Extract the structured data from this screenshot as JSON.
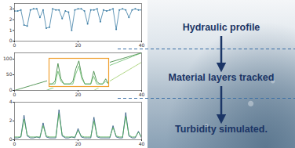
{
  "chart_data": [
    {
      "type": "line",
      "marker": "circle",
      "x": [
        0,
        1,
        2,
        3,
        4,
        5,
        6,
        7,
        8,
        9,
        10,
        11,
        12,
        13,
        14,
        15,
        16,
        17,
        18,
        19,
        20,
        21,
        22,
        23,
        24,
        25,
        26,
        27,
        28,
        29,
        30,
        31,
        32,
        33,
        34,
        35,
        36,
        37,
        38,
        39,
        40
      ],
      "series": [
        {
          "color": "#3f7fa6",
          "values": [
            2.8,
            2.8,
            2.9,
            1.5,
            1.4,
            2.9,
            3.0,
            3.0,
            2.2,
            2.9,
            1.2,
            1.3,
            3.0,
            2.9,
            2.9,
            2.1,
            2.8,
            2.7,
            1.0,
            2.9,
            3.0,
            3.0,
            2.8,
            1.6,
            2.9,
            2.9,
            3.0,
            1.8,
            2.9,
            2.8,
            2.9,
            3.0,
            1.1,
            2.9,
            3.0,
            2.9,
            2.2,
            2.9,
            3.0,
            2.9,
            2.9
          ]
        }
      ],
      "xlim": [
        0,
        40
      ],
      "xticks": [
        0,
        20,
        40
      ],
      "ylim": [
        0,
        3.5
      ],
      "yticks": [
        0,
        1,
        2,
        3
      ],
      "grid": false
    },
    {
      "type": "line",
      "x": [
        0,
        1,
        2,
        3,
        4,
        5,
        6,
        7,
        8,
        9,
        10,
        11,
        12,
        13,
        14,
        15,
        16,
        17,
        18,
        19,
        20,
        21,
        22,
        23,
        24,
        25,
        26,
        27,
        28,
        29,
        30,
        31,
        32,
        33,
        34,
        35,
        36,
        37,
        38,
        39,
        40
      ],
      "series": [
        {
          "color": "#2e7d32",
          "values": [
            0,
            3,
            6,
            9,
            12,
            15,
            18,
            21,
            24,
            27,
            30,
            33,
            36,
            39,
            42,
            45,
            48,
            51,
            54,
            57,
            60,
            63,
            66,
            69,
            72,
            75,
            78,
            81,
            84,
            87,
            90,
            93,
            96,
            99,
            102,
            105,
            108,
            111,
            114,
            117,
            120
          ]
        },
        {
          "color": "#66bb6a",
          "values": [
            null,
            null,
            null,
            null,
            null,
            null,
            null,
            null,
            null,
            null,
            0,
            4,
            8,
            12,
            16,
            20,
            24,
            28,
            32,
            36,
            40,
            44,
            48,
            52,
            56,
            60,
            64,
            68,
            72,
            76,
            80,
            84,
            88,
            92,
            96,
            100,
            104,
            108,
            112,
            116,
            120
          ]
        },
        {
          "color": "#9ccc65",
          "values": [
            null,
            null,
            null,
            null,
            null,
            null,
            null,
            null,
            null,
            null,
            null,
            null,
            null,
            null,
            null,
            null,
            null,
            null,
            null,
            null,
            null,
            null,
            null,
            null,
            null,
            0,
            6,
            12,
            18,
            24,
            30,
            36,
            42,
            48,
            54,
            60,
            66,
            72,
            78,
            84,
            90
          ]
        }
      ],
      "xlim": [
        0,
        40
      ],
      "xticks": [
        0,
        20,
        40
      ],
      "ylim": [
        0,
        120
      ],
      "yticks": [
        0,
        50,
        100
      ],
      "grid": false
    },
    {
      "type": "line",
      "tick_labels": false,
      "x": [
        0,
        1,
        2,
        3,
        4,
        5,
        6,
        7,
        8,
        9,
        10,
        11,
        12,
        13,
        14,
        15,
        16,
        17,
        18,
        19,
        20
      ],
      "series": [
        {
          "color": "#2e7d32",
          "values": [
            1,
            1,
            2,
            9,
            3,
            1,
            1,
            1,
            2,
            7,
            10,
            4,
            1,
            1,
            1,
            6,
            2,
            1,
            1,
            3,
            1
          ]
        },
        {
          "color": "#66bb6a",
          "values": [
            1,
            1,
            1,
            6,
            2,
            1,
            1,
            1,
            1,
            5,
            8,
            3,
            1,
            1,
            1,
            4,
            1,
            1,
            1,
            2,
            1
          ]
        }
      ],
      "xlim": [
        0,
        20
      ],
      "ylim": [
        0,
        11
      ],
      "grid": false
    },
    {
      "type": "line",
      "x": [
        0,
        1,
        2,
        3,
        4,
        5,
        6,
        7,
        8,
        9,
        10,
        11,
        12,
        13,
        14,
        15,
        16,
        17,
        18,
        19,
        20,
        21,
        22,
        23,
        24,
        25,
        26,
        27,
        28,
        29,
        30,
        31,
        32,
        33,
        34,
        35,
        36,
        37,
        38,
        39,
        40
      ],
      "series": [
        {
          "color": "#1f4e79",
          "values": [
            0.2,
            0.2,
            0.3,
            2.6,
            0.4,
            0.2,
            0.2,
            0.3,
            0.2,
            1.8,
            0.3,
            0.2,
            0.2,
            0.2,
            3.2,
            0.4,
            0.2,
            0.2,
            0.3,
            0.2,
            1.2,
            0.3,
            0.2,
            0.2,
            0.2,
            2.4,
            0.3,
            0.2,
            0.2,
            0.2,
            0.2,
            1.5,
            0.3,
            0.2,
            0.2,
            2.9,
            0.4,
            0.2,
            0.2,
            0.9,
            0.2
          ]
        },
        {
          "color": "#4caf50",
          "values": [
            0.3,
            0.3,
            0.3,
            2.2,
            0.5,
            0.3,
            0.3,
            0.3,
            0.3,
            1.5,
            0.4,
            0.3,
            0.3,
            0.3,
            2.8,
            0.5,
            0.3,
            0.3,
            0.3,
            0.3,
            1.0,
            0.4,
            0.3,
            0.3,
            0.3,
            2.0,
            0.4,
            0.3,
            0.3,
            0.3,
            0.3,
            1.3,
            0.4,
            0.3,
            0.3,
            2.5,
            0.5,
            0.3,
            0.3,
            0.8,
            0.3
          ]
        }
      ],
      "xlim": [
        0,
        40
      ],
      "xticks": [
        0,
        20,
        40
      ],
      "ylim": [
        0,
        4
      ],
      "yticks": [
        0,
        2,
        4
      ],
      "grid": false
    }
  ],
  "diagram": {
    "labels": [
      "Hydraulic profile",
      "Material layers tracked",
      "Turbidity simulated."
    ]
  }
}
